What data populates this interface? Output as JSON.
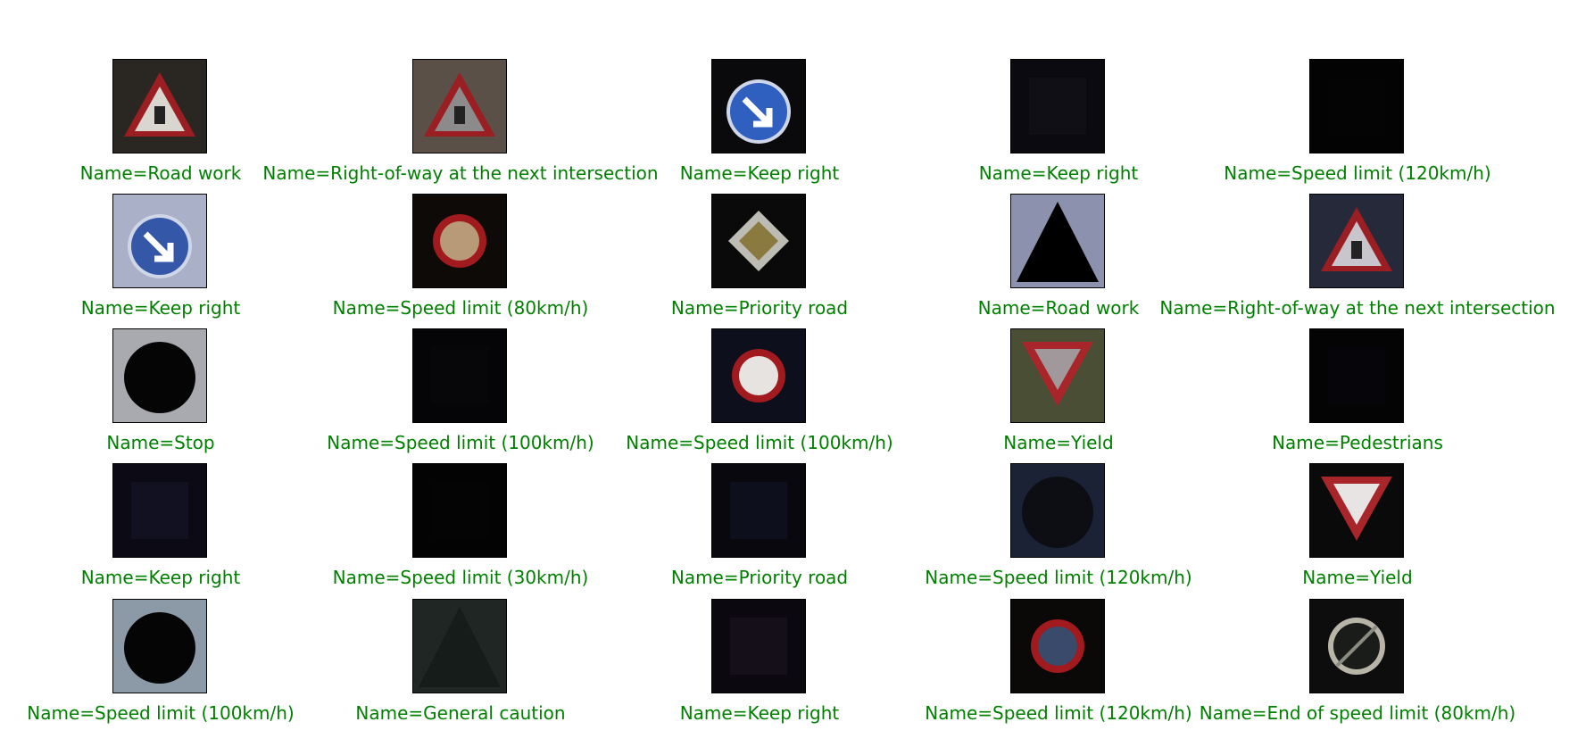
{
  "caption_color": "#008000",
  "images": [
    {
      "caption": "Name=Road work",
      "bg": "#2a2622",
      "sign": "triangle-red",
      "fill": "#d9d5cf"
    },
    {
      "caption": "Name=Right-of-way at the next intersection",
      "bg": "#5a5048",
      "sign": "triangle-red",
      "fill": "#8d8a8c"
    },
    {
      "caption": "Name=Keep right",
      "bg": "#0a0a0c",
      "sign": "circle-blue",
      "fill": "#2f5fbf"
    },
    {
      "caption": "Name=Keep right",
      "bg": "#0b0a10",
      "sign": "dark",
      "fill": "#14121a"
    },
    {
      "caption": "Name=Speed limit (120km/h)",
      "bg": "#030303",
      "sign": "dark",
      "fill": "#050505"
    },
    {
      "caption": "Name=Keep right",
      "bg": "#a9b0c8",
      "sign": "circle-blue",
      "fill": "#3557a8"
    },
    {
      "caption": "Name=Speed limit (80km/h)",
      "bg": "#0d0a08",
      "sign": "circle-red",
      "fill": "#b89a78"
    },
    {
      "caption": "Name=Priority road",
      "bg": "#0a0a0a",
      "sign": "diamond",
      "fill": "#8a7a40"
    },
    {
      "caption": "Name=Road work",
      "bg": "#8c92ae",
      "sign": "triangle-black",
      "fill": "#000000"
    },
    {
      "caption": "Name=Right-of-way at the next intersection",
      "bg": "#26293a",
      "sign": "triangle-red",
      "fill": "#c9c5cc"
    },
    {
      "caption": "Name=Stop",
      "bg": "#a8aab0",
      "sign": "circle-black",
      "fill": "#050505"
    },
    {
      "caption": "Name=Speed limit (100km/h)",
      "bg": "#050507",
      "sign": "dark",
      "fill": "#08080b"
    },
    {
      "caption": "Name=Speed limit (100km/h)",
      "bg": "#0d0f1c",
      "sign": "circle-red",
      "fill": "#e6e3e0"
    },
    {
      "caption": "Name=Yield",
      "bg": "#4a4e34",
      "sign": "yield",
      "fill": "#a0989a"
    },
    {
      "caption": "Name=Pedestrians",
      "bg": "#040405",
      "sign": "dark",
      "fill": "#08080d"
    },
    {
      "caption": "Name=Keep right",
      "bg": "#0c0a14",
      "sign": "dark",
      "fill": "#18162a"
    },
    {
      "caption": "Name=Speed limit (30km/h)",
      "bg": "#030303",
      "sign": "dark",
      "fill": "#050505"
    },
    {
      "caption": "Name=Priority road",
      "bg": "#08080e",
      "sign": "dark",
      "fill": "#111428"
    },
    {
      "caption": "Name=Speed limit (120km/h)",
      "bg": "#1c2235",
      "sign": "circle-black",
      "fill": "#0c0e14"
    },
    {
      "caption": "Name=Yield",
      "bg": "#0a0a0a",
      "sign": "yield",
      "fill": "#e8e4e4"
    },
    {
      "caption": "Name=Speed limit (100km/h)",
      "bg": "#8b9aa6",
      "sign": "circle-black",
      "fill": "#050505"
    },
    {
      "caption": "Name=General caution",
      "bg": "#202624",
      "sign": "triangle-black",
      "fill": "#161c1a"
    },
    {
      "caption": "Name=Keep right",
      "bg": "#0b0810",
      "sign": "dark",
      "fill": "#1a1420"
    },
    {
      "caption": "Name=Speed limit (120km/h)",
      "bg": "#0b0808",
      "sign": "circle-red",
      "fill": "#3a4a6a"
    },
    {
      "caption": "Name=End of speed limit (80km/h)",
      "bg": "#0c0d0c",
      "sign": "circle-grey",
      "fill": "#1a1c1a"
    }
  ]
}
